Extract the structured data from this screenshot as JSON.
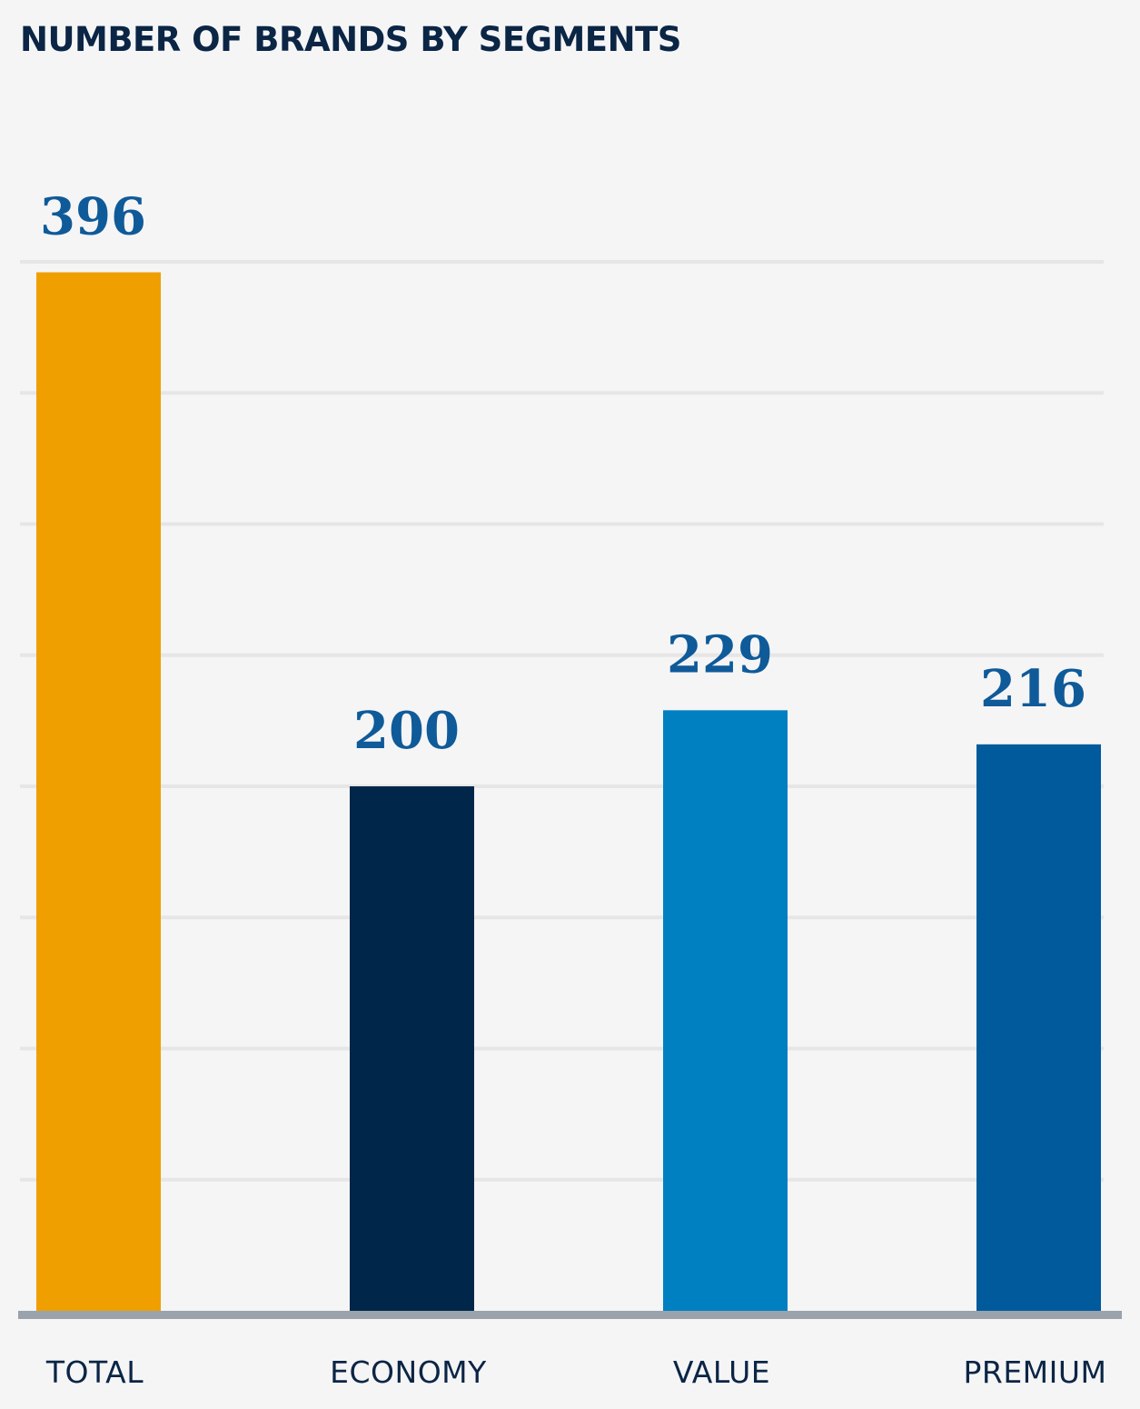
{
  "chart_data": {
    "type": "bar",
    "title": "NUMBER OF BRANDS BY SEGMENTS",
    "xlabel": "",
    "ylabel": "",
    "categories": [
      "TOTAL",
      "ECONOMY",
      "VALUE",
      "PREMIUM"
    ],
    "values": [
      396,
      200,
      229,
      216
    ],
    "value_labels": [
      "396",
      "200",
      "229",
      "216"
    ],
    "colors": [
      "#ef9f00",
      "#00274a",
      "#0080c1",
      "#005a9b"
    ],
    "value_label_color": "#0f5a99",
    "category_label_color": "#0b2545",
    "gridline_color": "#e6e6e6",
    "baseline_color": "#9aa3ab",
    "ylim": [
      0,
      400
    ],
    "grid": true,
    "legend": "none"
  }
}
